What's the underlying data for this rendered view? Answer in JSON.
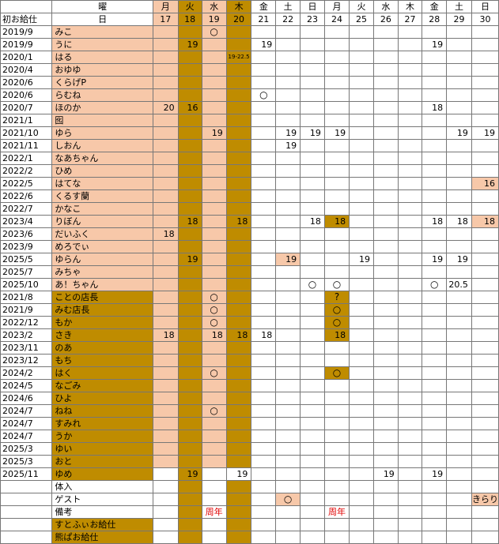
{
  "colors": {
    "pink": "#f7c8a9",
    "gold": "#bf8c00",
    "redText": "#e00000"
  },
  "header": {
    "row1": [
      "",
      "曜",
      "月",
      "火",
      "水",
      "木",
      "金",
      "土",
      "日",
      "月",
      "火",
      "水",
      "木",
      "金",
      "土",
      "日"
    ],
    "row2": [
      "初お給仕",
      "日",
      "17",
      "18",
      "19",
      "20",
      "21",
      "22",
      "23",
      "24",
      "25",
      "26",
      "27",
      "28",
      "29",
      "30"
    ]
  },
  "rows": [
    {
      "date": "2019/9",
      "name": "みこ",
      "cells": [
        "",
        "",
        "○",
        "",
        "",
        "",
        "",
        "",
        "",
        "",
        "",
        "",
        "",
        ""
      ]
    },
    {
      "date": "2019/9",
      "name": "うに",
      "cells": [
        "",
        "19",
        "",
        "",
        "19",
        "",
        "",
        "",
        "",
        "",
        "",
        "19",
        "",
        ""
      ]
    },
    {
      "date": "2020/1",
      "name": "はる",
      "cells": [
        "",
        "",
        "",
        "19-22.5",
        "",
        "",
        "",
        "",
        "",
        "",
        "",
        "",
        "",
        ""
      ]
    },
    {
      "date": "2020/4",
      "name": "おゆゆ",
      "cells": [
        "",
        "",
        "",
        "",
        "",
        "",
        "",
        "",
        "",
        "",
        "",
        "",
        "",
        ""
      ]
    },
    {
      "date": "2020/6",
      "name": "くらげP",
      "cells": [
        "",
        "",
        "",
        "",
        "",
        "",
        "",
        "",
        "",
        "",
        "",
        "",
        "",
        ""
      ]
    },
    {
      "date": "2020/6",
      "name": "らむね",
      "cells": [
        "",
        "",
        "",
        "",
        "○",
        "",
        "",
        "",
        "",
        "",
        "",
        "",
        "",
        ""
      ]
    },
    {
      "date": "2020/7",
      "name": "ほのか",
      "cells": [
        "20",
        "16",
        "",
        "",
        "",
        "",
        "",
        "",
        "",
        "",
        "",
        "18",
        "",
        ""
      ]
    },
    {
      "date": "2021/1",
      "name": "囮",
      "cells": [
        "",
        "",
        "",
        "",
        "",
        "",
        "",
        "",
        "",
        "",
        "",
        "",
        "",
        ""
      ]
    },
    {
      "date": "2021/10",
      "name": "ゆら",
      "cells": [
        "",
        "",
        "19",
        "",
        "",
        "19",
        "19",
        "19",
        "",
        "",
        "",
        "",
        "19",
        "19"
      ]
    },
    {
      "date": "2021/11",
      "name": "しおん",
      "cells": [
        "",
        "",
        "",
        "",
        "",
        "19",
        "",
        "",
        "",
        "",
        "",
        "",
        "",
        ""
      ]
    },
    {
      "date": "2022/1",
      "name": "なあちゃん",
      "cells": [
        "",
        "",
        "",
        "",
        "",
        "",
        "",
        "",
        "",
        "",
        "",
        "",
        "",
        ""
      ]
    },
    {
      "date": "2022/2",
      "name": "ひめ",
      "cells": [
        "",
        "",
        "",
        "",
        "",
        "",
        "",
        "",
        "",
        "",
        "",
        "",
        "",
        ""
      ]
    },
    {
      "date": "2022/5",
      "name": "はてな",
      "cells": [
        "",
        "",
        "",
        "",
        "",
        "",
        "",
        "",
        "",
        "",
        "",
        "",
        "",
        "16"
      ]
    },
    {
      "date": "2022/6",
      "name": "くるす蘭",
      "cells": [
        "",
        "",
        "",
        "",
        "",
        "",
        "",
        "",
        "",
        "",
        "",
        "",
        "",
        ""
      ]
    },
    {
      "date": "2022/7",
      "name": "かなこ",
      "cells": [
        "",
        "",
        "",
        "",
        "",
        "",
        "",
        "",
        "",
        "",
        "",
        "",
        "",
        ""
      ]
    },
    {
      "date": "2023/4",
      "name": "りぼん",
      "cells": [
        "",
        "18",
        "",
        "18",
        "",
        "",
        "18",
        "18",
        "",
        "",
        "",
        "18",
        "18",
        "18"
      ]
    },
    {
      "date": "2023/6",
      "name": "だいふく",
      "cells": [
        "18",
        "",
        "",
        "",
        "",
        "",
        "",
        "",
        "",
        "",
        "",
        "",
        "",
        ""
      ]
    },
    {
      "date": "2023/9",
      "name": "めろでぃ",
      "cells": [
        "",
        "",
        "",
        "",
        "",
        "",
        "",
        "",
        "",
        "",
        "",
        "",
        "",
        ""
      ]
    },
    {
      "date": "2025/5",
      "name": "ゆらん",
      "cells": [
        "",
        "19",
        "",
        "",
        "",
        "19",
        "",
        "",
        "19",
        "",
        "",
        "19",
        "19",
        ""
      ]
    },
    {
      "date": "2025/7",
      "name": "みちゃ",
      "cells": [
        "",
        "",
        "",
        "",
        "",
        "",
        "",
        "",
        "",
        "",
        "",
        "",
        "",
        ""
      ]
    },
    {
      "date": "2025/10",
      "name": "あ！ちゃん",
      "cells": [
        "",
        "",
        "",
        "",
        "",
        "",
        "○",
        "○",
        "",
        "",
        "",
        "○",
        "20.5",
        ""
      ]
    },
    {
      "date": "2021/8",
      "name": "ことの店長",
      "cells": [
        "",
        "",
        "○",
        "",
        "",
        "",
        "",
        "?",
        "",
        "",
        "",
        "",
        "",
        ""
      ]
    },
    {
      "date": "2021/9",
      "name": "みむ店長",
      "cells": [
        "",
        "",
        "○",
        "",
        "",
        "",
        "",
        "○",
        "",
        "",
        "",
        "",
        "",
        ""
      ]
    },
    {
      "date": "2022/12",
      "name": "もか",
      "cells": [
        "",
        "",
        "○",
        "",
        "",
        "",
        "",
        "○",
        "",
        "",
        "",
        "",
        "",
        ""
      ]
    },
    {
      "date": "2023/2",
      "name": "さき",
      "cells": [
        "18",
        "",
        "18",
        "18",
        "18",
        "",
        "",
        "18",
        "",
        "",
        "",
        "",
        "",
        ""
      ]
    },
    {
      "date": "2023/11",
      "name": "のあ",
      "cells": [
        "",
        "",
        "",
        "",
        "",
        "",
        "",
        "",
        "",
        "",
        "",
        "",
        "",
        ""
      ]
    },
    {
      "date": "2023/12",
      "name": "もち",
      "cells": [
        "",
        "",
        "",
        "",
        "",
        "",
        "",
        "",
        "",
        "",
        "",
        "",
        "",
        ""
      ]
    },
    {
      "date": "2024/2",
      "name": "はく",
      "cells": [
        "",
        "",
        "○",
        "",
        "",
        "",
        "",
        "○",
        "",
        "",
        "",
        "",
        "",
        ""
      ]
    },
    {
      "date": "2024/5",
      "name": "なごみ",
      "cells": [
        "",
        "",
        "",
        "",
        "",
        "",
        "",
        "",
        "",
        "",
        "",
        "",
        "",
        ""
      ]
    },
    {
      "date": "2024/6",
      "name": "ひよ",
      "cells": [
        "",
        "",
        "",
        "",
        "",
        "",
        "",
        "",
        "",
        "",
        "",
        "",
        "",
        ""
      ]
    },
    {
      "date": "2024/7",
      "name": "ねね",
      "cells": [
        "",
        "",
        "○",
        "",
        "",
        "",
        "",
        "",
        "",
        "",
        "",
        "",
        "",
        ""
      ]
    },
    {
      "date": "2024/7",
      "name": "すみれ",
      "cells": [
        "",
        "",
        "",
        "",
        "",
        "",
        "",
        "",
        "",
        "",
        "",
        "",
        "",
        ""
      ]
    },
    {
      "date": "2024/7",
      "name": "うか",
      "cells": [
        "",
        "",
        "",
        "",
        "",
        "",
        "",
        "",
        "",
        "",
        "",
        "",
        "",
        ""
      ]
    },
    {
      "date": "2025/3",
      "name": "ゆい",
      "cells": [
        "",
        "",
        "",
        "",
        "",
        "",
        "",
        "",
        "",
        "",
        "",
        "",
        "",
        ""
      ]
    },
    {
      "date": "2025/3",
      "name": "おと",
      "cells": [
        "",
        "",
        "",
        "",
        "",
        "",
        "",
        "",
        "",
        "",
        "",
        "",
        "",
        ""
      ]
    },
    {
      "date": "2025/11",
      "name": "ゆめ",
      "cells": [
        "",
        "19",
        "",
        "19",
        "",
        "",
        "",
        "",
        "",
        "19",
        "",
        "19",
        "",
        ""
      ]
    },
    {
      "date": "",
      "name": "体入",
      "cells": [
        "",
        "",
        "",
        "",
        "",
        "",
        "",
        "",
        "",
        "",
        "",
        "",
        "",
        ""
      ]
    },
    {
      "date": "",
      "name": "ゲスト",
      "cells": [
        "",
        "",
        "",
        "",
        "",
        "○",
        "",
        "",
        "",
        "",
        "",
        "",
        "",
        "きらり"
      ]
    },
    {
      "date": "",
      "name": "備考",
      "cells": [
        "",
        "",
        "周年",
        "",
        "",
        "",
        "",
        "周年",
        "",
        "",
        "",
        "",
        "",
        ""
      ]
    },
    {
      "date": "",
      "name": "すとふぃお給仕",
      "cells": [
        "",
        "",
        "",
        "",
        "",
        "",
        "",
        "",
        "",
        "",
        "",
        "",
        "",
        ""
      ]
    },
    {
      "date": "",
      "name": "熊ぱお給仕",
      "cells": [
        "",
        "",
        "",
        "",
        "",
        "",
        "",
        "",
        "",
        "",
        "",
        "",
        "",
        ""
      ]
    }
  ]
}
